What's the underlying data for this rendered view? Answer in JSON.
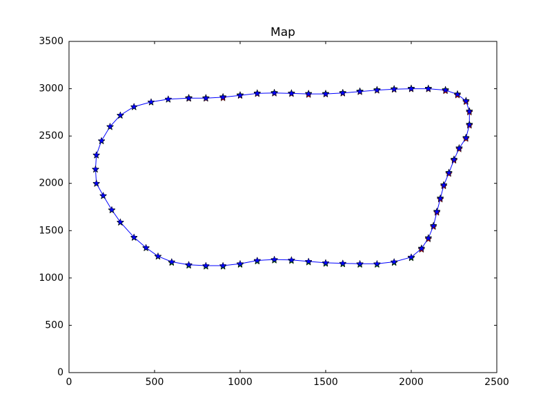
{
  "chart_data": {
    "type": "line",
    "title": "Map",
    "x": [
      700,
      800,
      900,
      1000,
      1100,
      1200,
      1300,
      1400,
      1500,
      1600,
      1700,
      1800,
      1900,
      2000,
      2100,
      2200,
      2270,
      2320,
      2340,
      2340,
      2320,
      2280,
      2250,
      2220,
      2190,
      2170,
      2150,
      2130,
      2100,
      2060,
      2000,
      1900,
      1800,
      1700,
      1600,
      1500,
      1400,
      1300,
      1200,
      1100,
      1000,
      900,
      800,
      700,
      600,
      520,
      450,
      380,
      300,
      250,
      200,
      160,
      155,
      160,
      190,
      240,
      300,
      380,
      480,
      580,
      700
    ],
    "series": [
      {
        "color": "#ff0000",
        "marker": "star",
        "line": false,
        "values": [
          2895,
          2895,
          2900,
          2925,
          2945,
          2950,
          2945,
          2935,
          2940,
          2950,
          2965,
          2980,
          2990,
          2995,
          2995,
          2975,
          2930,
          2860,
          2750,
          2610,
          2470,
          2360,
          2240,
          2100,
          1970,
          1830,
          1690,
          1540,
          1410,
          1300,
          1215,
          1165,
          1145,
          1148,
          1152,
          1158,
          1172,
          1188,
          1192,
          1182,
          1148,
          1128,
          1128,
          1138,
          1168,
          1228,
          1318,
          1428,
          1588,
          1718,
          1868,
          1998,
          2148,
          2298,
          2448,
          2598,
          2718,
          2808,
          2858,
          2888,
          2895
        ]
      },
      {
        "color": "#008000",
        "marker": "star",
        "line": false,
        "values": [
          2905,
          2905,
          2915,
          2935,
          2955,
          2960,
          2955,
          2950,
          2950,
          2960,
          2975,
          2990,
          3000,
          3005,
          3005,
          2990,
          2945,
          2875,
          2765,
          2625,
          2485,
          2375,
          2255,
          2115,
          1985,
          1845,
          1705,
          1555,
          1425,
          1315,
          1210,
          1160,
          1140,
          1140,
          1145,
          1150,
          1165,
          1180,
          1185,
          1175,
          1140,
          1120,
          1120,
          1130,
          1160,
          1225,
          1315,
          1425,
          1585,
          1715,
          1865,
          1995,
          2145,
          2295,
          2445,
          2595,
          2715,
          2805,
          2855,
          2885,
          2905
        ]
      },
      {
        "color": "#0000ff",
        "marker": "star",
        "line": true,
        "values": [
          2900,
          2900,
          2910,
          2930,
          2950,
          2955,
          2950,
          2945,
          2945,
          2955,
          2970,
          2985,
          2995,
          3000,
          3000,
          2985,
          2940,
          2870,
          2760,
          2620,
          2480,
          2370,
          2250,
          2110,
          1980,
          1840,
          1700,
          1550,
          1420,
          1310,
          1220,
          1170,
          1150,
          1150,
          1155,
          1160,
          1175,
          1190,
          1195,
          1185,
          1150,
          1130,
          1130,
          1140,
          1170,
          1230,
          1320,
          1430,
          1590,
          1720,
          1870,
          2000,
          2150,
          2300,
          2450,
          2600,
          2720,
          2810,
          2860,
          2890,
          2900
        ]
      }
    ],
    "xlim": [
      0,
      2500
    ],
    "xticks": [
      0,
      500,
      1000,
      1500,
      2000,
      2500
    ],
    "ylim": [
      0,
      3500
    ],
    "yticks": [
      0,
      500,
      1000,
      1500,
      2000,
      2500,
      3000,
      3500
    ],
    "grid": false
  }
}
